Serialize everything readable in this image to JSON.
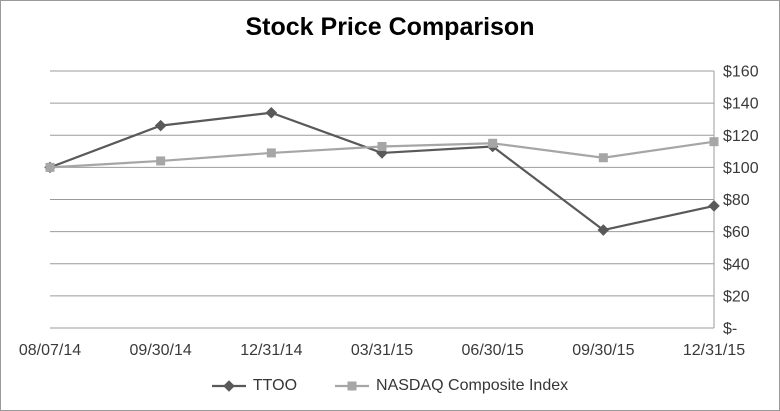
{
  "chart_data": {
    "type": "line",
    "title": "Stock Price Comparison",
    "categories": [
      "08/07/14",
      "09/30/14",
      "12/31/14",
      "03/31/15",
      "06/30/15",
      "09/30/15",
      "12/31/15"
    ],
    "series": [
      {
        "name": "TTOO",
        "values": [
          100,
          126,
          134,
          109,
          113,
          61,
          76
        ],
        "color": "#595959",
        "marker": "diamond"
      },
      {
        "name": "NASDAQ Composite Index",
        "values": [
          100,
          104,
          109,
          113,
          115,
          106,
          116
        ],
        "color": "#a6a6a6",
        "marker": "square"
      }
    ],
    "xlabel": "",
    "ylabel": "",
    "ylim": [
      0,
      160
    ],
    "y_tick_step": 20,
    "y_tick_labels": [
      "$-",
      "$20",
      "$40",
      "$60",
      "$80",
      "$100",
      "$120",
      "$140",
      "$160"
    ],
    "y_axis_side": "right",
    "grid": true,
    "legend_position": "bottom",
    "colors": {
      "gridline": "#9b9b9b",
      "axis_line": "#9b9b9b",
      "tick_text": "#3a3a3a",
      "title_text": "#000000",
      "border": "#9a9a9a",
      "background": "#ffffff"
    }
  }
}
